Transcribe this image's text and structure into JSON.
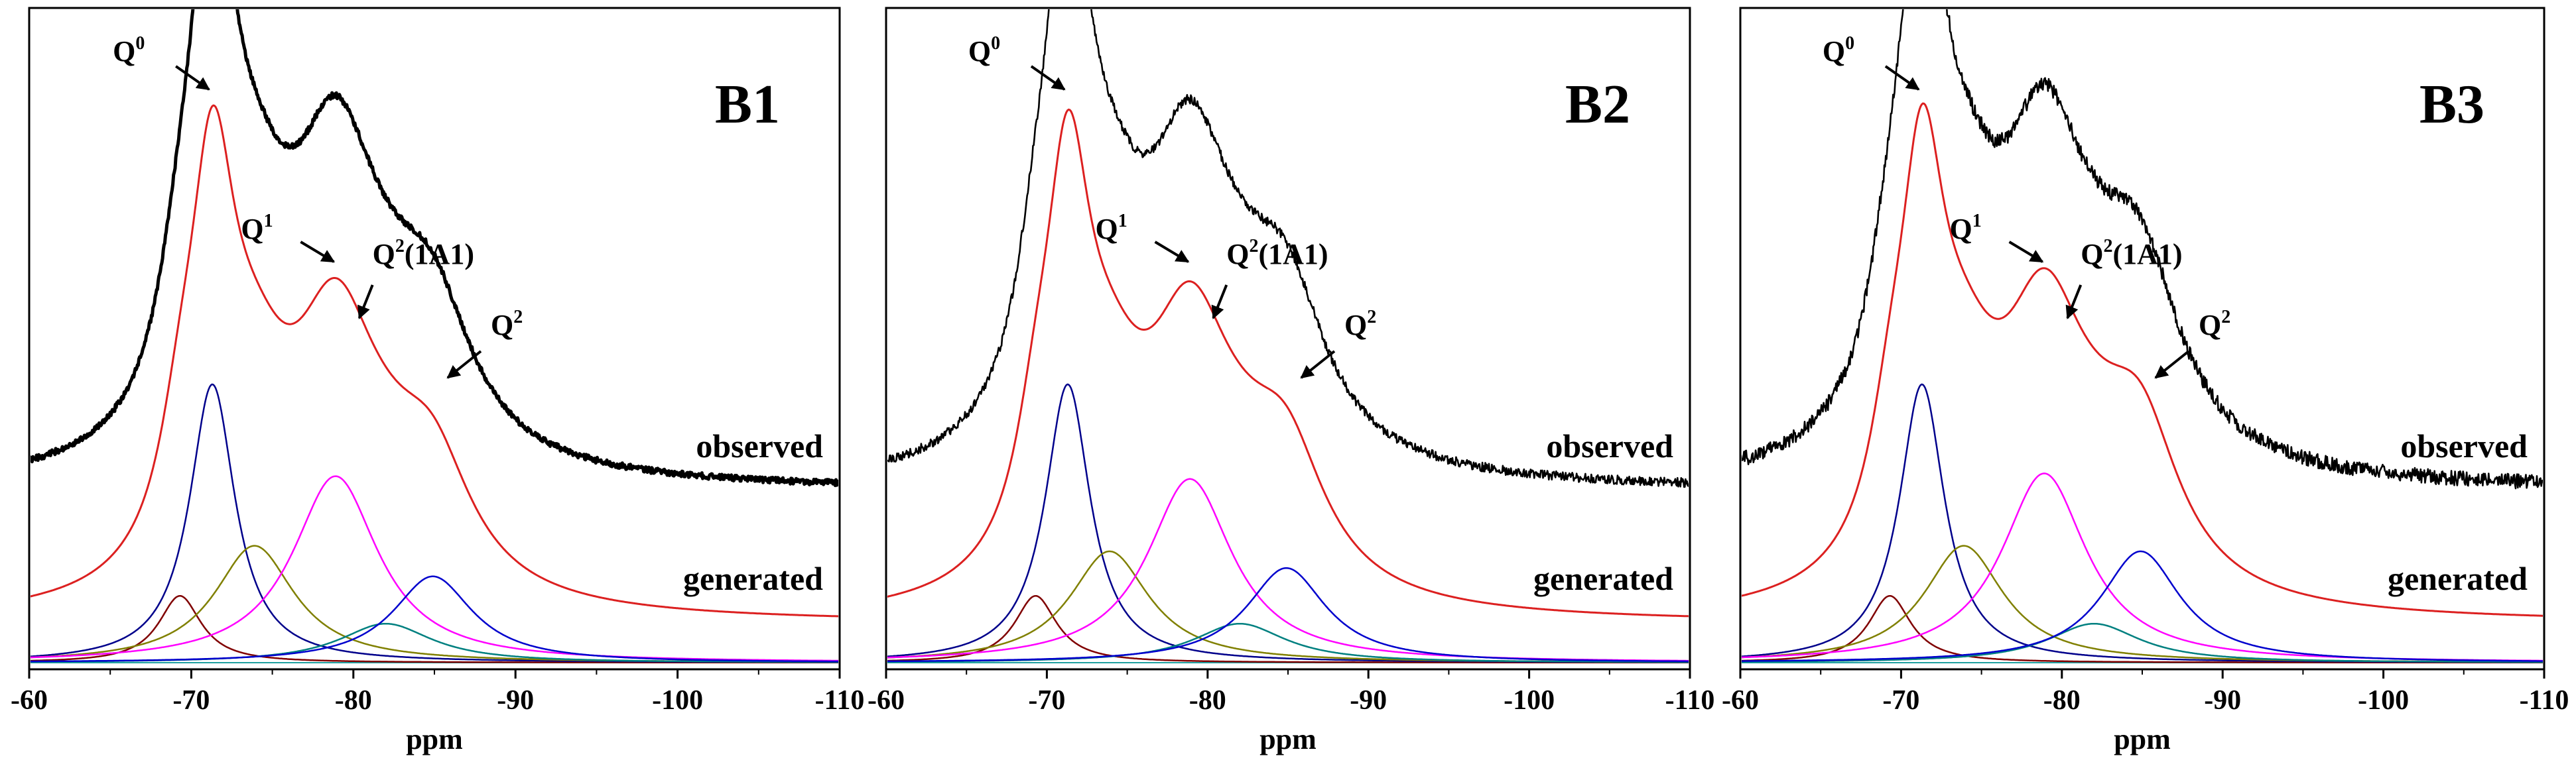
{
  "chart_data": [
    {
      "type": "line",
      "title": "B1",
      "xlabel": "ppm",
      "ylabel": "",
      "xlim": [
        -60,
        -110
      ],
      "xticks": [
        -60,
        -70,
        -80,
        -90,
        -100,
        -110
      ],
      "xtick_labels": [
        "-60",
        "-70",
        "-80",
        "-90",
        "-100",
        "-110"
      ],
      "trace_labels": {
        "observed": "observed",
        "generated": "generated"
      },
      "annotations": [
        {
          "base": "Q",
          "sup": "0",
          "tail": "",
          "ppm": -71.3
        },
        {
          "base": "Q",
          "sup": "1",
          "tail": "",
          "ppm": -79.0
        },
        {
          "base": "Q",
          "sup": "2",
          "tail": "(1A1)",
          "ppm": -82.0
        },
        {
          "base": "Q",
          "sup": "2",
          "tail": "",
          "ppm": -85.0
        }
      ],
      "components": [
        {
          "name": "component 1",
          "color": "#800000",
          "center": -69.3,
          "height": 0.24,
          "width": 1.6
        },
        {
          "name": "component 2",
          "color": "#00008b",
          "center": -71.3,
          "height": 1.0,
          "width": 1.7
        },
        {
          "name": "component 3",
          "color": "#808000",
          "center": -73.9,
          "height": 0.42,
          "width": 3.0
        },
        {
          "name": "component 4",
          "color": "#ff00ff",
          "center": -78.9,
          "height": 0.67,
          "width": 3.2
        },
        {
          "name": "component 5",
          "color": "#008080",
          "center": -82.0,
          "height": 0.14,
          "width": 3.5
        },
        {
          "name": "component 6",
          "color": "#0000cd",
          "center": -84.9,
          "height": 0.31,
          "width": 3.0
        }
      ],
      "generated_color": "#dc2020",
      "observed_color": "#000000",
      "observed_stroke": 5,
      "observed_noise": 0.045
    },
    {
      "type": "line",
      "title": "B2",
      "xlabel": "ppm",
      "ylabel": "",
      "xlim": [
        -60,
        -110
      ],
      "xticks": [
        -60,
        -70,
        -80,
        -90,
        -100,
        -110
      ],
      "xtick_labels": [
        "-60",
        "-70",
        "-80",
        "-90",
        "-100",
        "-110"
      ],
      "trace_labels": {
        "observed": "observed",
        "generated": "generated"
      },
      "annotations": [
        {
          "base": "Q",
          "sup": "0",
          "tail": "",
          "ppm": -71.3
        },
        {
          "base": "Q",
          "sup": "1",
          "tail": "",
          "ppm": -79.0
        },
        {
          "base": "Q",
          "sup": "2",
          "tail": "(1A1)",
          "ppm": -82.0
        },
        {
          "base": "Q",
          "sup": "2",
          "tail": "",
          "ppm": -85.0
        }
      ],
      "components": [
        {
          "name": "component 1",
          "color": "#800000",
          "center": -69.3,
          "height": 0.24,
          "width": 1.6
        },
        {
          "name": "component 2",
          "color": "#00008b",
          "center": -71.3,
          "height": 1.0,
          "width": 1.7
        },
        {
          "name": "component 3",
          "color": "#808000",
          "center": -73.9,
          "height": 0.4,
          "width": 3.0
        },
        {
          "name": "component 4",
          "color": "#ff00ff",
          "center": -78.9,
          "height": 0.66,
          "width": 3.2
        },
        {
          "name": "component 5",
          "color": "#008080",
          "center": -82.0,
          "height": 0.14,
          "width": 3.5
        },
        {
          "name": "component 6",
          "color": "#0000cd",
          "center": -84.9,
          "height": 0.34,
          "width": 3.0
        }
      ],
      "generated_color": "#dc2020",
      "observed_color": "#000000",
      "observed_stroke": 2.6,
      "observed_noise": 0.07
    },
    {
      "type": "line",
      "title": "B3",
      "xlabel": "ppm",
      "ylabel": "",
      "xlim": [
        -60,
        -110
      ],
      "xticks": [
        -60,
        -70,
        -80,
        -90,
        -100,
        -110
      ],
      "xtick_labels": [
        "-60",
        "-70",
        "-80",
        "-90",
        "-100",
        "-110"
      ],
      "trace_labels": {
        "observed": "observed",
        "generated": "generated"
      },
      "annotations": [
        {
          "base": "Q",
          "sup": "0",
          "tail": "",
          "ppm": -71.3
        },
        {
          "base": "Q",
          "sup": "1",
          "tail": "",
          "ppm": -79.0
        },
        {
          "base": "Q",
          "sup": "2",
          "tail": "(1A1)",
          "ppm": -82.0
        },
        {
          "base": "Q",
          "sup": "2",
          "tail": "",
          "ppm": -85.0
        }
      ],
      "components": [
        {
          "name": "component 1",
          "color": "#800000",
          "center": -69.3,
          "height": 0.24,
          "width": 1.6
        },
        {
          "name": "component 2",
          "color": "#00008b",
          "center": -71.3,
          "height": 1.0,
          "width": 1.7
        },
        {
          "name": "component 3",
          "color": "#808000",
          "center": -73.9,
          "height": 0.42,
          "width": 3.0
        },
        {
          "name": "component 4",
          "color": "#ff00ff",
          "center": -78.9,
          "height": 0.68,
          "width": 3.2
        },
        {
          "name": "component 5",
          "color": "#008080",
          "center": -82.0,
          "height": 0.14,
          "width": 3.5
        },
        {
          "name": "component 6",
          "color": "#0000cd",
          "center": -84.9,
          "height": 0.4,
          "width": 3.0
        }
      ],
      "generated_color": "#dc2020",
      "observed_color": "#000000",
      "observed_stroke": 2.6,
      "observed_noise": 0.11
    }
  ]
}
